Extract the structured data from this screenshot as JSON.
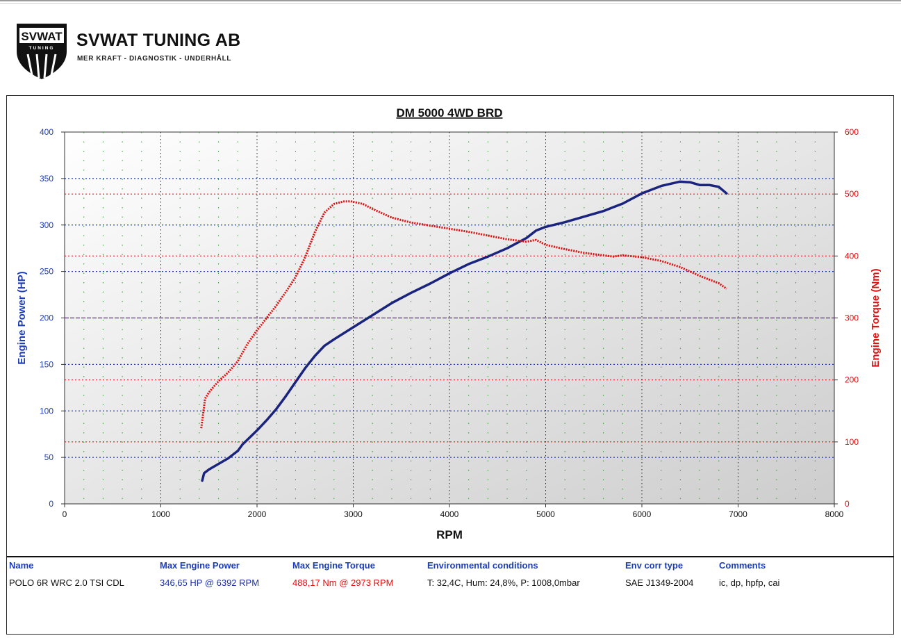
{
  "brand": {
    "logo_text": "SVWAT",
    "logo_subtext": "TUNING",
    "name": "SVWAT TUNING AB",
    "tagline": "MER KRAFT - DIAGNOSTIK - UNDERHÅLL"
  },
  "colors": {
    "power": "#1a237e",
    "torque": "#e01010",
    "left_axis": "#1d3db8",
    "right_axis": "#e01010"
  },
  "chart_data": {
    "type": "line",
    "title": "DM 5000 4WD BRD",
    "xlabel": "RPM",
    "ylabel_left": "Engine Power (HP)",
    "ylabel_right": "Engine Torque (Nm)",
    "xlim": [
      0,
      8000
    ],
    "ylim_left": [
      0,
      400
    ],
    "ylim_right": [
      0,
      600
    ],
    "x_ticks": [
      "0",
      "1000",
      "2000",
      "3000",
      "4000",
      "5000",
      "6000",
      "7000",
      "8000"
    ],
    "y_left_ticks": [
      "0",
      "50",
      "100",
      "150",
      "200",
      "250",
      "300",
      "350",
      "400"
    ],
    "y_right_ticks": [
      "0",
      "100",
      "200",
      "300",
      "400",
      "500",
      "600"
    ],
    "grid": true,
    "series": [
      {
        "name": "Engine Power",
        "axis": "left",
        "style": "solid",
        "x": [
          1430,
          1450,
          1500,
          1600,
          1700,
          1800,
          1850,
          1900,
          2000,
          2100,
          2200,
          2300,
          2400,
          2500,
          2600,
          2700,
          2800,
          3000,
          3200,
          3400,
          3600,
          3800,
          4000,
          4200,
          4400,
          4600,
          4800,
          4900,
          5000,
          5200,
          5400,
          5600,
          5700,
          5800,
          6000,
          6200,
          6392,
          6500,
          6600,
          6700,
          6800,
          6880
        ],
        "y": [
          25,
          33,
          37,
          43,
          49,
          57,
          64,
          69,
          79,
          90,
          102,
          116,
          131,
          146,
          159,
          170,
          177,
          190,
          203,
          216,
          227,
          237,
          248,
          258,
          266,
          275,
          286,
          294,
          298,
          303,
          309,
          315,
          319,
          323,
          334,
          342,
          346.65,
          346,
          343,
          343,
          341,
          334
        ]
      },
      {
        "name": "Engine Torque",
        "axis": "right",
        "style": "dotted",
        "x": [
          1420,
          1440,
          1460,
          1500,
          1600,
          1700,
          1800,
          1900,
          2000,
          2100,
          2200,
          2300,
          2400,
          2500,
          2600,
          2700,
          2800,
          2900,
          2973,
          3100,
          3200,
          3400,
          3600,
          3800,
          4000,
          4200,
          4400,
          4600,
          4800,
          4900,
          5000,
          5200,
          5400,
          5600,
          5700,
          5800,
          6000,
          6200,
          6400,
          6600,
          6800,
          6880
        ],
        "y": [
          122,
          145,
          170,
          180,
          198,
          212,
          230,
          258,
          280,
          300,
          320,
          342,
          366,
          398,
          438,
          470,
          484,
          488,
          488.17,
          484,
          476,
          462,
          454,
          449,
          444,
          439,
          433,
          427,
          423,
          426,
          418,
          411,
          405,
          401,
          399,
          401,
          398,
          392,
          382,
          368,
          356,
          347
        ]
      }
    ]
  },
  "table": {
    "headers": {
      "name": "Name",
      "power": "Max Engine Power",
      "torque": "Max Engine Torque",
      "env": "Environmental conditions",
      "corr": "Env corr type",
      "comments": "Comments"
    },
    "row": {
      "name": "POLO 6R WRC 2.0 TSI CDL",
      "power": "346,65 HP @ 6392 RPM",
      "torque": "488,17 Nm @ 2973 RPM",
      "env": "T: 32,4C, Hum: 24,8%, P: 1008,0mbar",
      "corr": "SAE J1349-2004",
      "comments": "ic, dp, hpfp, cai"
    }
  }
}
